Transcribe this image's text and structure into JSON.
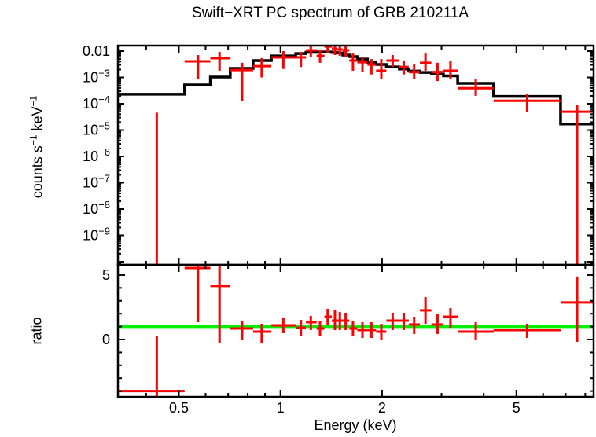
{
  "title": "Swift−XRT PC spectrum of GRB 210211A",
  "colors": {
    "data": "#ff0000",
    "model": "#000000",
    "unity_line": "#00f000",
    "frame": "#000000",
    "background": "#ffffff"
  },
  "chart_data": [
    {
      "type": "line",
      "panel": "spectrum",
      "title": "Swift−XRT PC spectrum of GRB 210211A",
      "ylabel_segments": [
        {
          "t": "counts s"
        },
        {
          "t": "−1",
          "sup": true
        },
        {
          "t": " keV"
        },
        {
          "t": "−1",
          "sup": true
        }
      ],
      "x_scale": "log",
      "y_scale": "log",
      "xlim": [
        0.33,
        8.47
      ],
      "ylim": [
        7.6e-11,
        0.0162
      ],
      "grid": false,
      "xticks_major": [
        {
          "v": 0.5,
          "label": "0.5"
        },
        {
          "v": 1,
          "label": "1"
        },
        {
          "v": 2,
          "label": "2"
        },
        {
          "v": 5,
          "label": "5"
        }
      ],
      "xticks_minor": [
        0.4,
        0.6,
        0.7,
        0.8,
        0.9,
        3,
        4,
        6,
        7,
        8
      ],
      "yticks": [
        {
          "v": 0.01,
          "label": "0.01"
        },
        {
          "v": 0.001,
          "base": "10",
          "exp": "−3"
        },
        {
          "v": 0.0001,
          "base": "10",
          "exp": "−4"
        },
        {
          "v": 1e-05,
          "base": "10",
          "exp": "−5"
        },
        {
          "v": 1e-06,
          "base": "10",
          "exp": "−6"
        },
        {
          "v": 1e-07,
          "base": "10",
          "exp": "−7"
        },
        {
          "v": 1e-08,
          "base": "10",
          "exp": "−8"
        },
        {
          "v": 1e-09,
          "base": "10",
          "exp": "−9"
        }
      ],
      "model_series": {
        "name": "folded-model",
        "bin_edges": [
          0.33,
          0.52,
          0.62,
          0.71,
          0.83,
          0.94,
          1.11,
          1.19,
          1.28,
          1.35,
          1.42,
          1.47,
          1.53,
          1.6,
          1.69,
          1.81,
          1.92,
          2.06,
          2.25,
          2.4,
          2.59,
          2.8,
          3.04,
          3.35,
          4.28,
          6.76,
          8.47
        ],
        "values": [
          0.00023,
          0.00052,
          0.00104,
          0.0022,
          0.0044,
          0.0066,
          0.0081,
          0.009,
          0.0093,
          0.0093,
          0.0089,
          0.0085,
          0.0071,
          0.0062,
          0.005,
          0.0038,
          0.0031,
          0.0025,
          0.0021,
          0.00175,
          0.00155,
          0.00135,
          0.00115,
          0.0006,
          0.00019,
          1.7e-05
        ]
      },
      "points": [
        {
          "e": 0.43,
          "e_lo": 0.33,
          "e_hi": 0.52,
          "rate": 4.6e-05,
          "rate_lo": 1e-11,
          "rate_hi": 4.6e-05,
          "bar": false
        },
        {
          "e": 0.57,
          "e_lo": 0.52,
          "e_hi": 0.62,
          "rate": 0.0041,
          "rate_lo": 0.0009,
          "rate_hi": 0.0071
        },
        {
          "e": 0.66,
          "e_lo": 0.62,
          "e_hi": 0.71,
          "rate": 0.0054,
          "rate_lo": 0.0018,
          "rate_hi": 0.0093
        },
        {
          "e": 0.77,
          "e_lo": 0.71,
          "e_hi": 0.83,
          "rate": 0.0019,
          "rate_lo": 0.00013,
          "rate_hi": 0.0036
        },
        {
          "e": 0.88,
          "e_lo": 0.83,
          "e_hi": 0.94,
          "rate": 0.0027,
          "rate_lo": 0.001,
          "rate_hi": 0.0054
        },
        {
          "e": 1.02,
          "e_lo": 0.94,
          "e_hi": 1.11,
          "rate": 0.0058,
          "rate_lo": 0.0021,
          "rate_hi": 0.01
        },
        {
          "e": 1.15,
          "e_lo": 1.11,
          "e_hi": 1.19,
          "rate": 0.0058,
          "rate_lo": 0.0025,
          "rate_hi": 0.0093
        },
        {
          "e": 1.23,
          "e_lo": 1.19,
          "e_hi": 1.28,
          "rate": 0.0107,
          "rate_lo": 0.0062,
          "rate_hi": 0.0155
        },
        {
          "e": 1.31,
          "e_lo": 1.28,
          "e_hi": 1.35,
          "rate": 0.0066,
          "rate_lo": 0.0036,
          "rate_hi": 0.0107
        },
        {
          "e": 1.38,
          "e_lo": 1.35,
          "e_hi": 1.42,
          "rate": 0.015,
          "rate_lo": 0.0081,
          "rate_hi": 0.0162
        },
        {
          "e": 1.45,
          "e_lo": 1.42,
          "e_hi": 1.47,
          "rate": 0.0123,
          "rate_lo": 0.0071,
          "rate_hi": 0.0158
        },
        {
          "e": 1.5,
          "e_lo": 1.47,
          "e_hi": 1.53,
          "rate": 0.0115,
          "rate_lo": 0.0066,
          "rate_hi": 0.0155
        },
        {
          "e": 1.56,
          "e_lo": 1.53,
          "e_hi": 1.6,
          "rate": 0.0107,
          "rate_lo": 0.0062,
          "rate_hi": 0.015
        },
        {
          "e": 1.64,
          "e_lo": 1.6,
          "e_hi": 1.69,
          "rate": 0.0044,
          "rate_lo": 0.0018,
          "rate_hi": 0.0081
        },
        {
          "e": 1.75,
          "e_lo": 1.69,
          "e_hi": 1.81,
          "rate": 0.0038,
          "rate_lo": 0.0016,
          "rate_hi": 0.0062
        },
        {
          "e": 1.86,
          "e_lo": 1.81,
          "e_hi": 1.92,
          "rate": 0.0031,
          "rate_lo": 0.0013,
          "rate_hi": 0.005
        },
        {
          "e": 1.99,
          "e_lo": 1.92,
          "e_hi": 2.06,
          "rate": 0.0018,
          "rate_lo": 0.0009,
          "rate_hi": 0.005
        },
        {
          "e": 2.15,
          "e_lo": 2.06,
          "e_hi": 2.25,
          "rate": 0.0044,
          "rate_lo": 0.0025,
          "rate_hi": 0.0071
        },
        {
          "e": 2.32,
          "e_lo": 2.25,
          "e_hi": 2.4,
          "rate": 0.0025,
          "rate_lo": 0.0013,
          "rate_hi": 0.0044
        },
        {
          "e": 2.49,
          "e_lo": 2.4,
          "e_hi": 2.59,
          "rate": 0.0016,
          "rate_lo": 0.0009,
          "rate_hi": 0.0031
        },
        {
          "e": 2.69,
          "e_lo": 2.59,
          "e_hi": 2.8,
          "rate": 0.0036,
          "rate_lo": 0.0018,
          "rate_hi": 0.0081
        },
        {
          "e": 2.92,
          "e_lo": 2.8,
          "e_hi": 3.04,
          "rate": 0.0016,
          "rate_lo": 0.00073,
          "rate_hi": 0.0036
        },
        {
          "e": 3.19,
          "e_lo": 3.04,
          "e_hi": 3.35,
          "rate": 0.0018,
          "rate_lo": 0.0009,
          "rate_hi": 0.0041
        },
        {
          "e": 3.79,
          "e_lo": 3.35,
          "e_hi": 4.28,
          "rate": 0.00039,
          "rate_lo": 0.0002,
          "rate_hi": 0.0009
        },
        {
          "e": 5.38,
          "e_lo": 4.28,
          "e_hi": 6.76,
          "rate": 0.00013,
          "rate_lo": 5e-05,
          "rate_hi": 0.00023
        },
        {
          "e": 7.57,
          "e_lo": 6.76,
          "e_hi": 8.47,
          "rate": 5e-05,
          "rate_lo": 1e-11,
          "rate_hi": 9.3e-05
        }
      ]
    },
    {
      "type": "scatter",
      "panel": "ratio",
      "ylabel": "ratio",
      "xlabel": "Energy (keV)",
      "x_scale": "log",
      "y_scale": "linear",
      "xlim": [
        0.33,
        8.47
      ],
      "ylim": [
        -4.45,
        5.79
      ],
      "grid": false,
      "reference_line": {
        "y": 1
      },
      "yticks": [
        {
          "v": 0,
          "label": "0"
        },
        {
          "v": 5,
          "label": "5"
        }
      ],
      "yticks_minor": [
        -4,
        -3,
        -2,
        -1,
        1,
        2,
        3,
        4
      ],
      "points": [
        {
          "e": 0.43,
          "e_lo": 0.33,
          "e_hi": 0.52,
          "ratio": -4.0,
          "ratio_lo": -4.6,
          "ratio_hi": 0.3
        },
        {
          "e": 0.57,
          "e_lo": 0.52,
          "e_hi": 0.62,
          "ratio": 5.55,
          "ratio_lo": 1.34,
          "ratio_hi": 5.85
        },
        {
          "e": 0.66,
          "e_lo": 0.62,
          "e_hi": 0.71,
          "ratio": 4.15,
          "ratio_lo": -0.3,
          "ratio_hi": 5.73
        },
        {
          "e": 0.77,
          "e_lo": 0.71,
          "e_hi": 0.83,
          "ratio": 0.85,
          "ratio_lo": -0.06,
          "ratio_hi": 1.46
        },
        {
          "e": 0.88,
          "e_lo": 0.83,
          "e_hi": 0.94,
          "ratio": 0.61,
          "ratio_lo": -0.3,
          "ratio_hi": 1.22
        },
        {
          "e": 1.02,
          "e_lo": 0.94,
          "e_hi": 1.11,
          "ratio": 1.1,
          "ratio_lo": 0.49,
          "ratio_hi": 1.71
        },
        {
          "e": 1.15,
          "e_lo": 1.11,
          "e_hi": 1.19,
          "ratio": 0.91,
          "ratio_lo": 0.3,
          "ratio_hi": 1.52
        },
        {
          "e": 1.23,
          "e_lo": 1.19,
          "e_hi": 1.28,
          "ratio": 1.34,
          "ratio_lo": 0.73,
          "ratio_hi": 1.83
        },
        {
          "e": 1.31,
          "e_lo": 1.28,
          "e_hi": 1.35,
          "ratio": 0.85,
          "ratio_lo": 0.24,
          "ratio_hi": 1.46
        },
        {
          "e": 1.38,
          "e_lo": 1.35,
          "e_hi": 1.42,
          "ratio": 1.77,
          "ratio_lo": 1.1,
          "ratio_hi": 2.38
        },
        {
          "e": 1.45,
          "e_lo": 1.42,
          "e_hi": 1.47,
          "ratio": 1.46,
          "ratio_lo": 0.73,
          "ratio_hi": 2.26
        },
        {
          "e": 1.5,
          "e_lo": 1.47,
          "e_hi": 1.53,
          "ratio": 1.46,
          "ratio_lo": 0.73,
          "ratio_hi": 2.13
        },
        {
          "e": 1.56,
          "e_lo": 1.53,
          "e_hi": 1.6,
          "ratio": 1.46,
          "ratio_lo": 0.73,
          "ratio_hi": 2.07
        },
        {
          "e": 1.64,
          "e_lo": 1.6,
          "e_hi": 1.69,
          "ratio": 0.85,
          "ratio_lo": 0.24,
          "ratio_hi": 1.46
        },
        {
          "e": 1.75,
          "e_lo": 1.69,
          "e_hi": 1.81,
          "ratio": 0.73,
          "ratio_lo": 0.12,
          "ratio_hi": 1.34
        },
        {
          "e": 1.86,
          "e_lo": 1.81,
          "e_hi": 1.92,
          "ratio": 0.73,
          "ratio_lo": 0.12,
          "ratio_hi": 1.34
        },
        {
          "e": 1.99,
          "e_lo": 1.92,
          "e_hi": 2.06,
          "ratio": 0.61,
          "ratio_lo": -0.06,
          "ratio_hi": 1.22
        },
        {
          "e": 2.15,
          "e_lo": 2.06,
          "e_hi": 2.25,
          "ratio": 1.46,
          "ratio_lo": 0.73,
          "ratio_hi": 2.07
        },
        {
          "e": 2.32,
          "e_lo": 2.25,
          "e_hi": 2.4,
          "ratio": 1.46,
          "ratio_lo": 0.73,
          "ratio_hi": 2.07
        },
        {
          "e": 2.49,
          "e_lo": 2.4,
          "e_hi": 2.59,
          "ratio": 1.16,
          "ratio_lo": 0.43,
          "ratio_hi": 1.77
        },
        {
          "e": 2.69,
          "e_lo": 2.59,
          "e_hi": 2.8,
          "ratio": 2.26,
          "ratio_lo": 1.22,
          "ratio_hi": 3.29
        },
        {
          "e": 2.92,
          "e_lo": 2.8,
          "e_hi": 3.04,
          "ratio": 1.16,
          "ratio_lo": 0.43,
          "ratio_hi": 1.95
        },
        {
          "e": 3.19,
          "e_lo": 3.04,
          "e_hi": 3.35,
          "ratio": 1.77,
          "ratio_lo": 0.91,
          "ratio_hi": 2.44
        },
        {
          "e": 3.79,
          "e_lo": 3.35,
          "e_hi": 4.28,
          "ratio": 0.61,
          "ratio_lo": 0.0,
          "ratio_hi": 1.34
        },
        {
          "e": 5.38,
          "e_lo": 4.28,
          "e_hi": 6.76,
          "ratio": 0.73,
          "ratio_lo": 0.12,
          "ratio_hi": 1.22
        },
        {
          "e": 7.57,
          "e_lo": 6.76,
          "e_hi": 8.47,
          "ratio": 2.87,
          "ratio_lo": -0.18,
          "ratio_hi": 4.88
        }
      ]
    }
  ]
}
